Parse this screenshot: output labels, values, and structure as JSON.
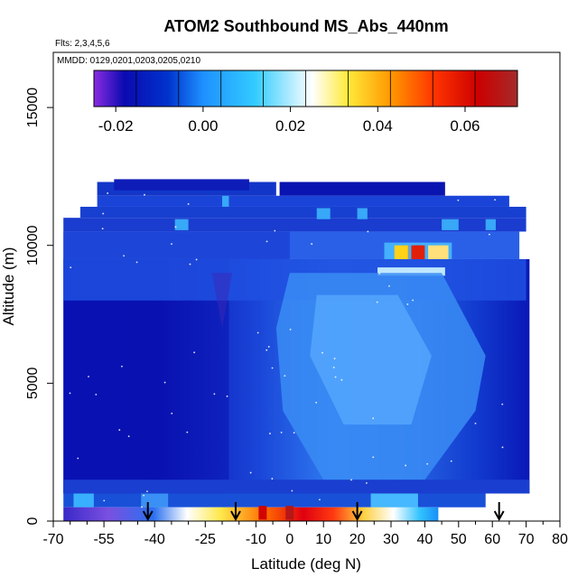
{
  "chart_data": {
    "type": "heatmap",
    "title": "ATOM2 Southbound MS_Abs_440nm",
    "subtitle_flights": "Flts: 2,3,4,5,6",
    "subtitle_dates": "MMDD: 0129,0201,0203,0205,0210",
    "xlabel": "Latitude (deg N)",
    "ylabel": "Altitude (m)",
    "xlim": [
      -70,
      80
    ],
    "ylim": [
      0,
      17000
    ],
    "x_ticks": [
      -70,
      -55,
      -40,
      -25,
      -10,
      0,
      10,
      20,
      30,
      40,
      50,
      60,
      70,
      80
    ],
    "y_ticks": [
      0,
      5000,
      10000,
      15000
    ],
    "colorbar": {
      "range": [
        -0.025,
        0.072
      ],
      "ticks": [
        -0.02,
        0.0,
        0.02,
        0.04,
        0.06
      ],
      "tick_labels": [
        "-0.02",
        "0.00",
        "0.02",
        "0.04",
        "0.06"
      ],
      "colors": [
        "#8a2be2",
        "#0a0ab0",
        "#0033cc",
        "#1e90ff",
        "#33ccff",
        "#ffffff",
        "#ffeb3b",
        "#ff9800",
        "#ff3300",
        "#cc0000",
        "#a52a2a"
      ],
      "color_stops": [
        -0.025,
        -0.018,
        -0.008,
        0.0,
        0.012,
        0.025,
        0.033,
        0.043,
        0.053,
        0.063,
        0.072
      ]
    },
    "arrows_latitude": [
      -42,
      -16,
      20,
      62
    ],
    "hot_spots": [
      {
        "lat": 0,
        "alt": 300,
        "value": 0.068
      },
      {
        "lat": -8,
        "alt": 300,
        "value": 0.062
      },
      {
        "lat": 38,
        "alt": 9750,
        "value": 0.07
      },
      {
        "lat": 34,
        "alt": 9750,
        "value": 0.045
      },
      {
        "lat": 45,
        "alt": 9750,
        "value": 0.04
      }
    ]
  }
}
